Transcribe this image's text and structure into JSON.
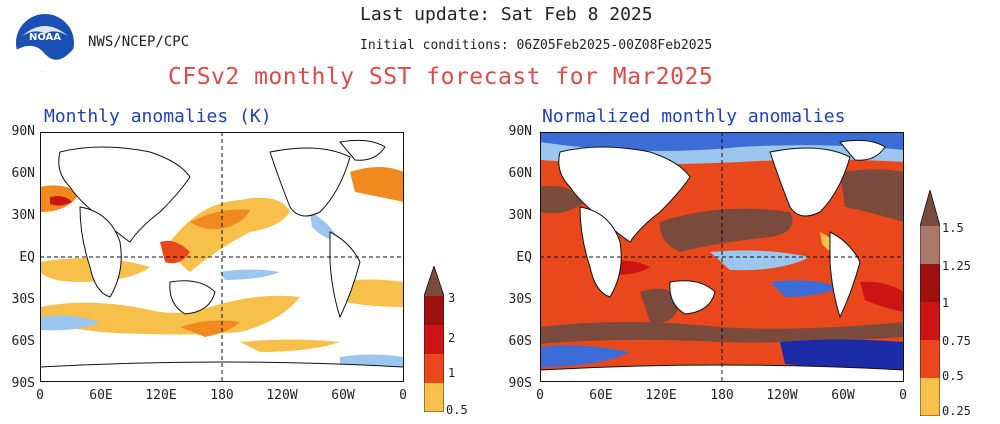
{
  "header": {
    "agency": "NWS/NCEP/CPC",
    "last_update": "Last update: Sat Feb 8 2025",
    "initial_conditions": "Initial conditions: 06Z05Feb2025-00Z08Feb2025",
    "main_title": "CFSv2 monthly SST forecast for Mar2025"
  },
  "logo": {
    "text": "NOAA"
  },
  "colors": {
    "orange_light": "#f7c04a",
    "orange": "#f08a1e",
    "red_orange": "#e8481c",
    "red": "#cc1414",
    "dark_red": "#9c1010",
    "brown": "#7a4a3c",
    "light_brown": "#a97868",
    "blue_light": "#9cc6ee",
    "blue": "#3c6cd6",
    "blue_dark": "#1c2ca8"
  },
  "panels": [
    {
      "title": "Monthly anomalies (K)",
      "lat_labels": [
        "90N",
        "60N",
        "30N",
        "EQ",
        "30S",
        "60S",
        "90S"
      ],
      "lon_labels": [
        "0",
        "60E",
        "120E",
        "180",
        "120W",
        "60W",
        "0"
      ],
      "colorbar_labels": [
        "3",
        "2",
        "1",
        "0.5"
      ]
    },
    {
      "title": "Normalized monthly anomalies",
      "lat_labels": [
        "90N",
        "60N",
        "30N",
        "EQ",
        "30S",
        "60S",
        "90S"
      ],
      "lon_labels": [
        "0",
        "60E",
        "120E",
        "180",
        "120W",
        "60W",
        "0"
      ],
      "colorbar_labels": [
        "1.5",
        "1.25",
        "1",
        "0.75",
        "0.5",
        "0.25"
      ]
    }
  ]
}
